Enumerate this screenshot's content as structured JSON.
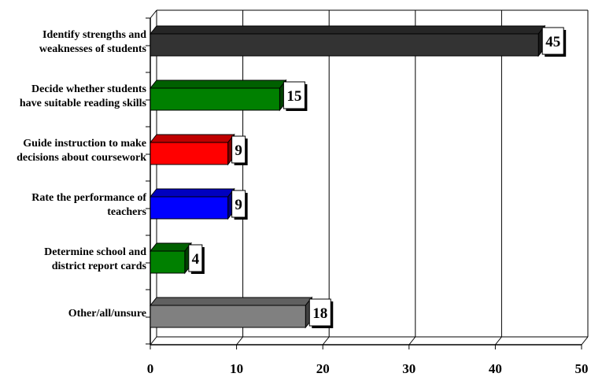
{
  "chart_data": {
    "type": "bar",
    "orientation": "horizontal",
    "categories": [
      [
        "Identify strengths and",
        "weaknesses of students"
      ],
      [
        "Decide whether students",
        "have suitable reading skills"
      ],
      [
        "Guide instruction to make",
        "decisions about coursework"
      ],
      [
        "Rate the performance of",
        "teachers"
      ],
      [
        "Determine school and",
        "district report cards"
      ],
      [
        "Other/all/unsure"
      ]
    ],
    "values": [
      45,
      15,
      9,
      9,
      4,
      18
    ],
    "colors": [
      "#333333",
      "#008000",
      "#ff0000",
      "#0000ff",
      "#008000",
      "#808080"
    ],
    "data_labels": [
      "45",
      "15",
      "9",
      "9",
      "4",
      "18"
    ],
    "xticks": [
      "0",
      "10",
      "20",
      "30",
      "40",
      "50"
    ],
    "xlim": [
      0,
      50
    ],
    "grid": "vertical",
    "title": "",
    "xlabel": "",
    "ylabel": ""
  }
}
